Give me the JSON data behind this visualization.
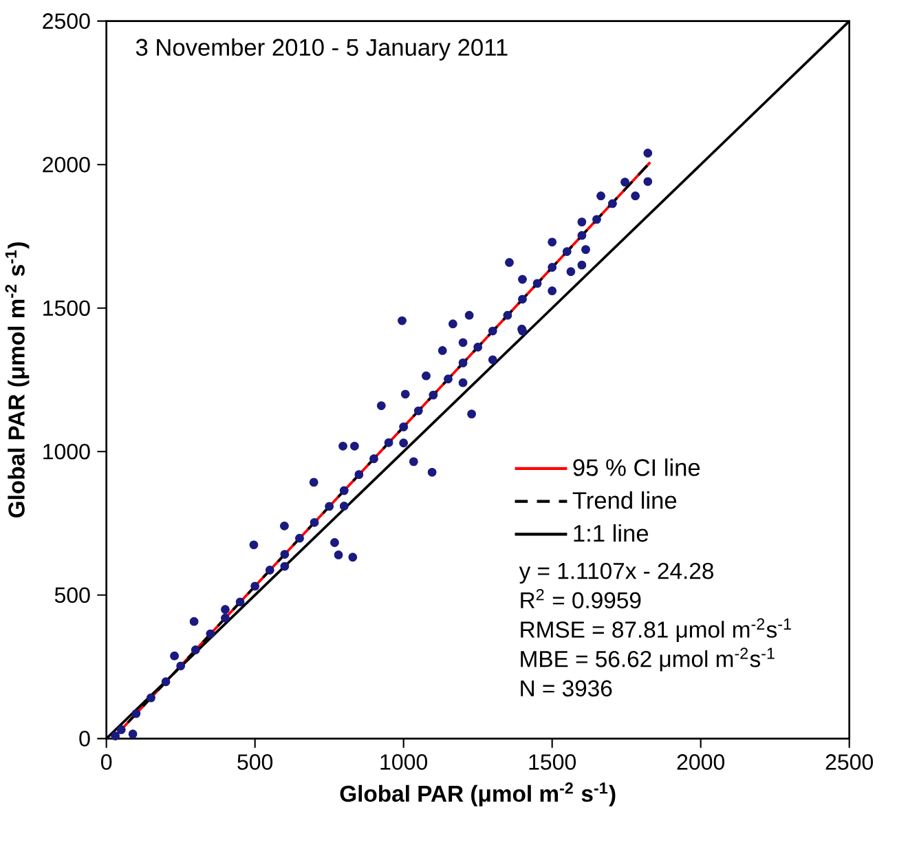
{
  "chart_data": {
    "type": "scatter",
    "title": "3 November 2010 - 5 January 2011",
    "xlabel": "Global PAR (μmol m$^{-2}$ s$^{-1}$)",
    "ylabel": "Global PAR (μmol m$^{-2}$ s$^{-1}$)",
    "xlim": [
      0,
      2500
    ],
    "ylim": [
      0,
      2500
    ],
    "xticks": [
      0,
      500,
      1000,
      1500,
      2000,
      2500
    ],
    "yticks": [
      0,
      500,
      1000,
      1500,
      2000,
      2500
    ],
    "grid": false,
    "legend": "bottom right",
    "series": [
      {
        "color": "#1a1a80",
        "x": [
          30,
          50,
          89,
          100,
          150,
          200,
          229,
          250,
          295,
          300,
          350,
          400,
          400,
          450,
          496,
          500,
          550,
          599,
          600,
          600,
          650,
          698,
          700,
          750,
          768,
          781,
          796,
          800,
          800,
          829,
          835,
          850,
          900,
          925,
          950,
          995,
          1000,
          1000,
          1006,
          1034,
          1050,
          1076,
          1096,
          1100,
          1131,
          1150,
          1166,
          1200,
          1200,
          1200,
          1221,
          1229,
          1250,
          1300,
          1300,
          1350,
          1356,
          1398,
          1400,
          1400,
          1400,
          1450,
          1500,
          1500,
          1500,
          1550,
          1563,
          1600,
          1600,
          1600,
          1613,
          1650,
          1664,
          1703,
          1745,
          1780,
          1822,
          1822
        ],
        "values": [
          9,
          31,
          16,
          87,
          142,
          198,
          288,
          253,
          408,
          309,
          365,
          420,
          450,
          476,
          675,
          531,
          587,
          741,
          642,
          600,
          698,
          893,
          753,
          809,
          683,
          640,
          1019,
          864,
          810,
          632,
          1019,
          920,
          975,
          1160,
          1031,
          1456,
          1086,
          1030,
          1200,
          965,
          1142,
          1264,
          928,
          1197,
          1352,
          1253,
          1445,
          1309,
          1240,
          1380,
          1475,
          1131,
          1364,
          1420,
          1320,
          1475,
          1659,
          1427,
          1531,
          1420,
          1600,
          1586,
          1642,
          1560,
          1730,
          1697,
          1627,
          1753,
          1650,
          1800,
          1704,
          1809,
          1891,
          1864,
          1939,
          1891,
          1941,
          2040
        ]
      },
      {
        "type": "line",
        "name": "95 % CI line",
        "color": "#ff0000",
        "line_style": "solid",
        "x": [
          22,
          1830
        ],
        "values": [
          0,
          2008
        ]
      },
      {
        "type": "line",
        "name": "Trend line",
        "color": "#000000",
        "line_style": "dashed",
        "x": [
          22,
          1830
        ],
        "values": [
          0,
          2008
        ]
      },
      {
        "type": "line",
        "name": "1:1 line",
        "color": "#000000",
        "line_style": "solid",
        "x": [
          0,
          2500
        ],
        "values": [
          0,
          2500
        ]
      }
    ],
    "annotations": [
      "y = 1.1107x - 24.28",
      "R$^{2}$ = 0.9959",
      "RMSE =  87.81 μmol m$^{-2}$s$^{-1}$",
      "MBE = 56.62 μmol m$^{-2}$s$^{-1}$",
      "N = 3936"
    ]
  }
}
